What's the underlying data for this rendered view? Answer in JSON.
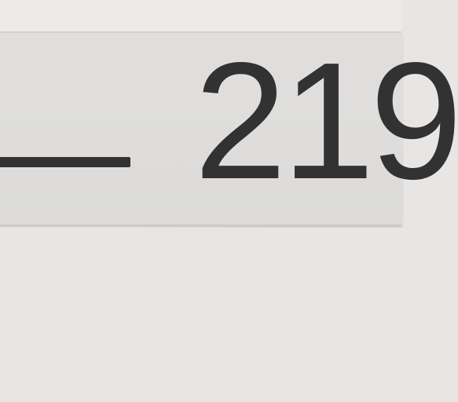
{
  "plate": {
    "number": "219"
  },
  "colors": {
    "wall": "#e7e6e4",
    "plate": "#dedddb",
    "ink": "#333233"
  }
}
